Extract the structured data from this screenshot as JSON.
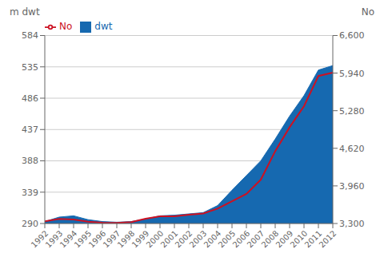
{
  "chart_data": {
    "type": "combo",
    "x": [
      1992,
      1993,
      1994,
      1995,
      1996,
      1997,
      1998,
      1999,
      2000,
      2001,
      2002,
      2003,
      2004,
      2005,
      2006,
      2007,
      2008,
      2009,
      2010,
      2011,
      2012
    ],
    "xlim": [
      1992,
      2012
    ],
    "xticks": [
      1992,
      1993,
      1994,
      1995,
      1996,
      1997,
      1998,
      1999,
      2000,
      2001,
      2002,
      2003,
      2004,
      2005,
      2006,
      2007,
      2008,
      2009,
      2010,
      2011,
      2012
    ],
    "ylabel": "m dwt",
    "y2label": "No",
    "ylim": [
      290,
      584
    ],
    "yticks": [
      290,
      339,
      388,
      437,
      486,
      535,
      584
    ],
    "y2lim": [
      3300,
      6600
    ],
    "y2ticks": [
      {
        "value": 3300,
        "label": "3,300"
      },
      {
        "value": 3960,
        "label": "3,960"
      },
      {
        "value": 4620,
        "label": "4,620"
      },
      {
        "value": 5280,
        "label": "5,280"
      },
      {
        "value": 5940,
        "label": "5,940"
      },
      {
        "value": 6600,
        "label": "6,600"
      }
    ],
    "grid": true,
    "legend": "upper left",
    "series": [
      {
        "name": "dwt",
        "type": "area",
        "color": "#1669b0",
        "values": [
          293,
          300,
          302,
          296,
          293,
          292,
          293,
          297,
          302,
          303,
          305,
          307,
          318,
          342,
          365,
          388,
          422,
          458,
          490,
          530,
          537
        ]
      },
      {
        "name": "No",
        "type": "line",
        "color": "#cc1122",
        "axis": "y2",
        "values": [
          3340,
          3380,
          3370,
          3330,
          3315,
          3310,
          3325,
          3385,
          3425,
          3425,
          3455,
          3475,
          3560,
          3690,
          3820,
          4070,
          4570,
          4990,
          5360,
          5890,
          5950
        ]
      }
    ]
  }
}
